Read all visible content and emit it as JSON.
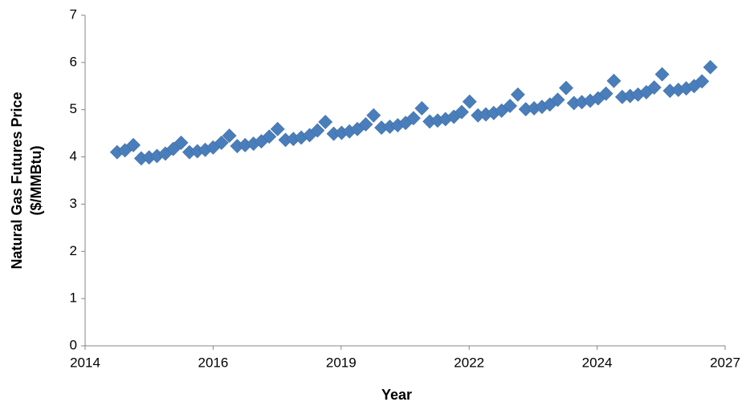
{
  "chart_data": {
    "type": "scatter",
    "xlabel": "Year",
    "ylabel": [
      "Natural Gas Futures Price",
      "($/MMBtu)"
    ],
    "marker": "diamond",
    "series": [
      {
        "color": "#4a7ebb",
        "x": [
          2014.95,
          2015.11,
          2015.28,
          2015.44,
          2015.6,
          2015.76,
          2015.93,
          2016.09,
          2016.25,
          2016.42,
          2016.58,
          2016.74,
          2016.9,
          2017.07,
          2017.23,
          2017.39,
          2017.55,
          2017.72,
          2017.88,
          2018.04,
          2018.21,
          2018.37,
          2018.53,
          2018.69,
          2018.86,
          2019.02,
          2019.18,
          2019.35,
          2019.51,
          2019.67,
          2019.83,
          2020.0,
          2020.16,
          2020.32,
          2020.49,
          2020.65,
          2020.81,
          2020.97,
          2021.14,
          2021.3,
          2021.46,
          2021.62,
          2021.79,
          2021.95,
          2022.11,
          2022.28,
          2022.44,
          2022.6,
          2022.76,
          2022.93,
          2023.09,
          2023.25,
          2023.42,
          2023.58,
          2023.74,
          2023.9,
          2024.07,
          2024.23,
          2024.39,
          2024.56,
          2024.72,
          2024.88,
          2025.04,
          2025.21,
          2025.37,
          2025.53,
          2025.7,
          2025.86,
          2026.02,
          2026.18,
          2026.35,
          2026.51,
          2026.67,
          2026.83,
          2027.0
        ],
        "values": [
          4.1,
          4.14,
          4.25,
          3.97,
          3.99,
          4.02,
          4.07,
          4.17,
          4.3,
          4.1,
          4.12,
          4.15,
          4.2,
          4.3,
          4.45,
          4.23,
          4.25,
          4.28,
          4.33,
          4.43,
          4.59,
          4.36,
          4.38,
          4.41,
          4.46,
          4.56,
          4.74,
          4.49,
          4.51,
          4.54,
          4.59,
          4.69,
          4.88,
          4.62,
          4.64,
          4.67,
          4.72,
          4.82,
          5.03,
          4.75,
          4.77,
          4.8,
          4.85,
          4.95,
          5.17,
          4.88,
          4.9,
          4.93,
          4.98,
          5.08,
          5.32,
          5.01,
          5.03,
          5.06,
          5.11,
          5.21,
          5.46,
          5.14,
          5.16,
          5.19,
          5.24,
          5.34,
          5.61,
          5.27,
          5.29,
          5.32,
          5.37,
          5.47,
          5.75,
          5.4,
          5.42,
          5.45,
          5.5,
          5.6,
          5.9
        ]
      }
    ],
    "xlim": [
      2014.3,
      2027.3
    ],
    "xticks": [
      {
        "value": 2014.3,
        "label": "2014"
      },
      {
        "value": 2016.9,
        "label": "2016"
      },
      {
        "value": 2019.5,
        "label": "2019"
      },
      {
        "value": 2022.1,
        "label": "2022"
      },
      {
        "value": 2024.7,
        "label": "2024"
      },
      {
        "value": 2027.3,
        "label": "2027"
      }
    ],
    "ylim": [
      0,
      7
    ],
    "yticks": [
      0,
      1,
      2,
      3,
      4,
      5,
      6,
      7
    ],
    "grid": false
  }
}
